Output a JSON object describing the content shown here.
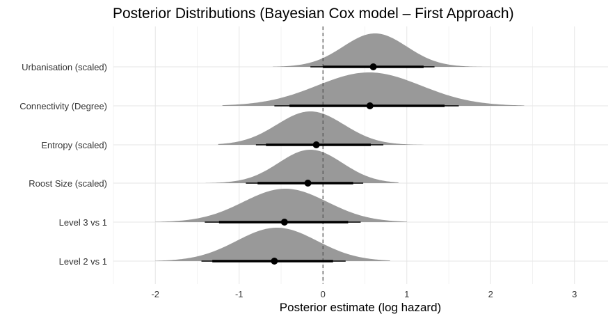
{
  "chart_data": {
    "type": "halfeye",
    "title": "Posterior Distributions (Bayesian Cox model – First Approach)",
    "xlabel": "Posterior estimate (log hazard)",
    "ylabel": "",
    "xlim": [
      -2.5,
      3.4
    ],
    "xticks": [
      -2,
      -1,
      0,
      1,
      2,
      3
    ],
    "reference_line_x": 0,
    "grid": true,
    "fill_color": "#999999",
    "rows": [
      {
        "label": "Urbanisation (scaled)",
        "point": 0.6,
        "inner": [
          0.0,
          1.2
        ],
        "outer": [
          -0.15,
          1.33
        ],
        "mode": 0.62,
        "sd": 0.38,
        "tails": [
          -0.6,
          2.0
        ]
      },
      {
        "label": "Connectivity (Degree)",
        "point": 0.56,
        "inner": [
          -0.4,
          1.45
        ],
        "outer": [
          -0.58,
          1.62
        ],
        "mode": 0.55,
        "sd": 0.62,
        "tails": [
          -1.2,
          2.4
        ]
      },
      {
        "label": "Entropy (scaled)",
        "point": -0.08,
        "inner": [
          -0.68,
          0.57
        ],
        "outer": [
          -0.8,
          0.72
        ],
        "mode": -0.15,
        "sd": 0.4,
        "tails": [
          -1.25,
          1.2
        ]
      },
      {
        "label": "Roost Size (scaled)",
        "point": -0.18,
        "inner": [
          -0.78,
          0.36
        ],
        "outer": [
          -0.92,
          0.48
        ],
        "mode": -0.15,
        "sd": 0.38,
        "tails": [
          -1.4,
          0.9
        ]
      },
      {
        "label": "Level 3 vs 1",
        "point": -0.46,
        "inner": [
          -1.24,
          0.3
        ],
        "outer": [
          -1.41,
          0.45
        ],
        "mode": -0.45,
        "sd": 0.5,
        "tails": [
          -2.0,
          1.0
        ]
      },
      {
        "label": "Level 2 vs 1",
        "point": -0.58,
        "inner": [
          -1.32,
          0.12
        ],
        "outer": [
          -1.45,
          0.27
        ],
        "mode": -0.55,
        "sd": 0.48,
        "tails": [
          -2.0,
          0.8
        ]
      }
    ]
  }
}
